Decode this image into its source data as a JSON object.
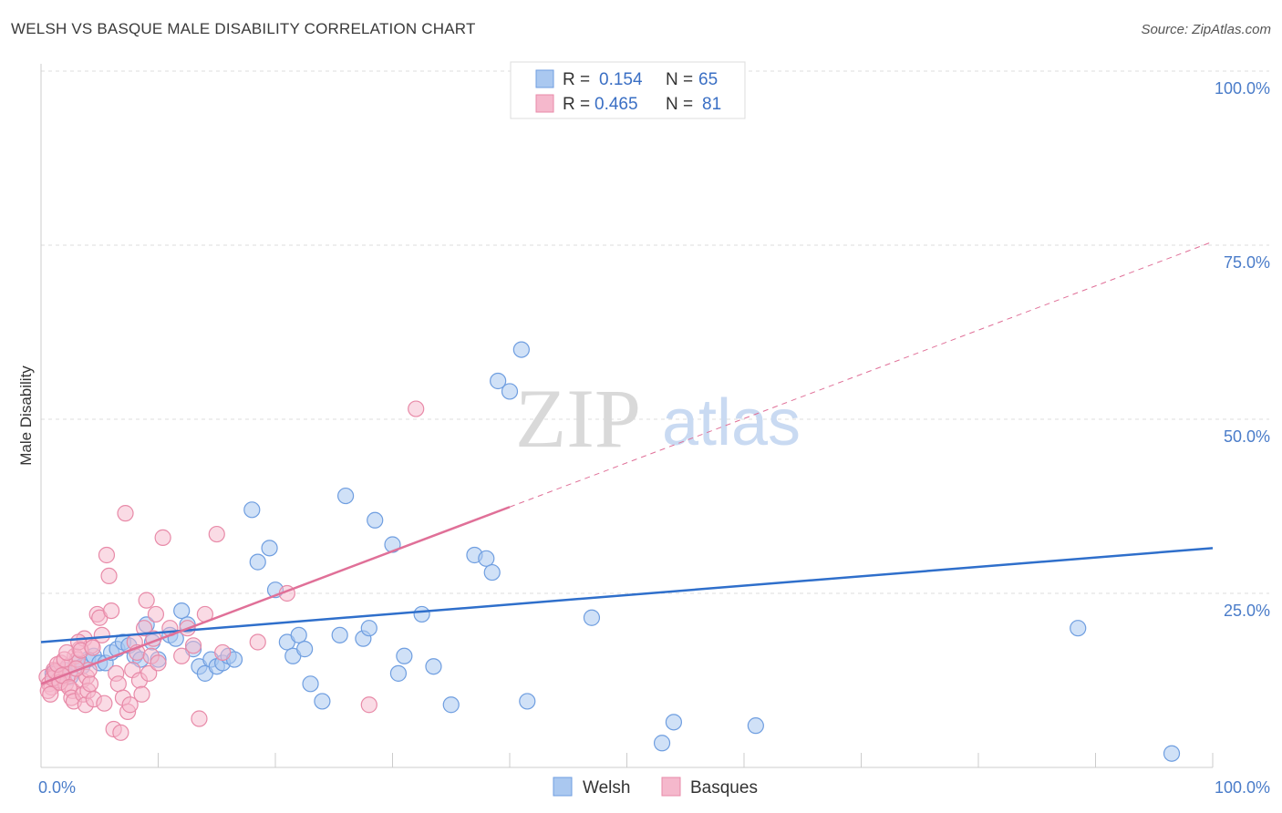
{
  "title": "WELSH VS BASQUE MALE DISABILITY CORRELATION CHART",
  "source": "Source: ZipAtlas.com",
  "watermark": {
    "zip": "ZIP",
    "atlas": "atlas"
  },
  "colors": {
    "welsh_fill": "#aac8f0",
    "welsh_stroke": "#6f9ee0",
    "welsh_line": "#2f6fcb",
    "basque_fill": "#f5b8cc",
    "basque_stroke": "#e88aa8",
    "basque_line": "#e07098",
    "grid": "#dddddd",
    "tick_text": "#4a7cc9"
  },
  "legend": {
    "r_label": "R =",
    "n_label": "N =",
    "welsh_r": "0.154",
    "welsh_n": "65",
    "basque_r": "0.465",
    "basque_n": "81"
  },
  "chart_data": {
    "type": "scatter",
    "title": "WELSH VS BASQUE MALE DISABILITY CORRELATION CHART",
    "ylabel": "Male Disability",
    "xlabel": "",
    "xlim": [
      0,
      100
    ],
    "ylim": [
      0,
      100
    ],
    "x_tick_labels": [
      "0.0%",
      "100.0%"
    ],
    "y_tick_labels": [
      "25.0%",
      "50.0%",
      "75.0%",
      "100.0%"
    ],
    "y_ticks": [
      25,
      50,
      75,
      100
    ],
    "grid": true,
    "legend_position": "top-center",
    "series": [
      {
        "name": "Welsh",
        "trend": {
          "x0": 0,
          "y0": 18.0,
          "x1": 100,
          "y1": 31.5,
          "dashed_from": null
        },
        "points": [
          [
            1.0,
            13.5
          ],
          [
            1.5,
            12.5
          ],
          [
            2.0,
            14.0
          ],
          [
            2.5,
            13.0
          ],
          [
            3.0,
            15.0
          ],
          [
            3.5,
            14.5
          ],
          [
            4.0,
            15.5
          ],
          [
            4.5,
            16.0
          ],
          [
            5.0,
            15.0
          ],
          [
            5.5,
            15.0
          ],
          [
            6.0,
            16.5
          ],
          [
            6.5,
            17.0
          ],
          [
            7.0,
            18.0
          ],
          [
            7.5,
            17.5
          ],
          [
            8.0,
            16.0
          ],
          [
            8.5,
            15.5
          ],
          [
            9.0,
            20.5
          ],
          [
            9.5,
            18.0
          ],
          [
            10.0,
            15.5
          ],
          [
            11.0,
            19.0
          ],
          [
            11.5,
            18.5
          ],
          [
            12.0,
            22.5
          ],
          [
            12.5,
            20.5
          ],
          [
            13.0,
            17.0
          ],
          [
            13.5,
            14.5
          ],
          [
            14.0,
            13.5
          ],
          [
            14.5,
            15.5
          ],
          [
            15.0,
            14.5
          ],
          [
            15.5,
            15.0
          ],
          [
            16.0,
            16.0
          ],
          [
            16.5,
            15.5
          ],
          [
            18.0,
            37.0
          ],
          [
            18.5,
            29.5
          ],
          [
            19.5,
            31.5
          ],
          [
            20.0,
            25.5
          ],
          [
            21.0,
            18.0
          ],
          [
            21.5,
            16.0
          ],
          [
            22.0,
            19.0
          ],
          [
            22.5,
            17.0
          ],
          [
            23.0,
            12.0
          ],
          [
            24.0,
            9.5
          ],
          [
            25.5,
            19.0
          ],
          [
            26.0,
            39.0
          ],
          [
            27.5,
            18.5
          ],
          [
            28.0,
            20.0
          ],
          [
            28.5,
            35.5
          ],
          [
            30.0,
            32.0
          ],
          [
            30.5,
            13.5
          ],
          [
            31.0,
            16.0
          ],
          [
            32.5,
            22.0
          ],
          [
            33.5,
            14.5
          ],
          [
            35.0,
            9.0
          ],
          [
            37.0,
            30.5
          ],
          [
            38.0,
            30.0
          ],
          [
            38.5,
            28.0
          ],
          [
            39.0,
            55.5
          ],
          [
            40.0,
            54.0
          ],
          [
            41.0,
            60.0
          ],
          [
            41.5,
            9.5
          ],
          [
            47.0,
            21.5
          ],
          [
            53.0,
            3.5
          ],
          [
            54.0,
            6.5
          ],
          [
            61.0,
            6.0
          ],
          [
            88.5,
            20.0
          ],
          [
            96.5,
            2.0
          ]
        ]
      },
      {
        "name": "Basques",
        "trend": {
          "x0": 0,
          "y0": 12.0,
          "x1": 100,
          "y1": 75.5,
          "solid_until_x": 40
        },
        "points": [
          [
            0.5,
            13.0
          ],
          [
            0.7,
            12.0
          ],
          [
            0.9,
            11.5
          ],
          [
            1.1,
            14.0
          ],
          [
            1.3,
            13.5
          ],
          [
            1.5,
            12.5
          ],
          [
            1.7,
            15.0
          ],
          [
            1.9,
            13.0
          ],
          [
            2.1,
            12.0
          ],
          [
            2.3,
            14.5
          ],
          [
            2.5,
            13.5
          ],
          [
            2.7,
            11.0
          ],
          [
            2.9,
            16.0
          ],
          [
            3.1,
            15.5
          ],
          [
            3.3,
            17.0
          ],
          [
            3.5,
            12.5
          ],
          [
            3.7,
            18.5
          ],
          [
            3.9,
            13.0
          ],
          [
            4.1,
            14.0
          ],
          [
            4.3,
            17.5
          ],
          [
            0.6,
            11.0
          ],
          [
            0.8,
            10.5
          ],
          [
            1.0,
            12.8
          ],
          [
            1.2,
            13.8
          ],
          [
            1.4,
            14.8
          ],
          [
            1.6,
            12.2
          ],
          [
            1.8,
            13.2
          ],
          [
            2.0,
            15.5
          ],
          [
            2.2,
            16.5
          ],
          [
            2.4,
            11.5
          ],
          [
            2.6,
            10.0
          ],
          [
            2.8,
            9.5
          ],
          [
            3.0,
            14.2
          ],
          [
            3.2,
            18.0
          ],
          [
            3.4,
            16.8
          ],
          [
            3.6,
            10.5
          ],
          [
            3.8,
            9.0
          ],
          [
            4.0,
            11.0
          ],
          [
            4.2,
            12.0
          ],
          [
            4.4,
            17.2
          ],
          [
            4.5,
            9.8
          ],
          [
            4.8,
            22.0
          ],
          [
            5.0,
            21.5
          ],
          [
            5.2,
            19.0
          ],
          [
            5.4,
            9.2
          ],
          [
            5.6,
            30.5
          ],
          [
            5.8,
            27.5
          ],
          [
            6.0,
            22.5
          ],
          [
            6.2,
            5.5
          ],
          [
            6.4,
            13.5
          ],
          [
            6.6,
            12.0
          ],
          [
            6.8,
            5.0
          ],
          [
            7.0,
            10.0
          ],
          [
            7.2,
            36.5
          ],
          [
            7.4,
            8.0
          ],
          [
            7.6,
            9.0
          ],
          [
            7.8,
            14.0
          ],
          [
            8.0,
            18.0
          ],
          [
            8.2,
            16.5
          ],
          [
            8.4,
            12.5
          ],
          [
            8.6,
            10.5
          ],
          [
            8.8,
            20.0
          ],
          [
            9.0,
            24.0
          ],
          [
            9.2,
            13.5
          ],
          [
            9.4,
            16.0
          ],
          [
            9.6,
            18.5
          ],
          [
            9.8,
            22.0
          ],
          [
            10.0,
            15.0
          ],
          [
            10.4,
            33.0
          ],
          [
            11.0,
            20.0
          ],
          [
            12.0,
            16.0
          ],
          [
            12.5,
            20.0
          ],
          [
            13.0,
            17.5
          ],
          [
            13.5,
            7.0
          ],
          [
            14.0,
            22.0
          ],
          [
            15.0,
            33.5
          ],
          [
            15.5,
            16.5
          ],
          [
            18.5,
            18.0
          ],
          [
            21.0,
            25.0
          ],
          [
            28.0,
            9.0
          ],
          [
            32.0,
            51.5
          ]
        ]
      }
    ]
  },
  "bottom_legend": {
    "welsh": "Welsh",
    "basques": "Basques"
  }
}
